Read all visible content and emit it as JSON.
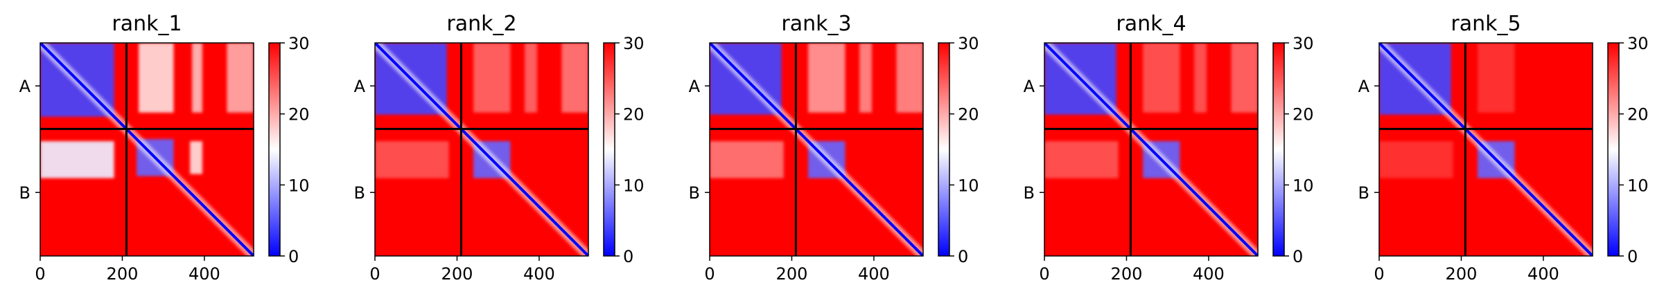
{
  "chart_data": [
    {
      "type": "heatmap",
      "title": "rank_1",
      "xlim": [
        0,
        520
      ],
      "x_ticks": [
        "0",
        "200",
        "400"
      ],
      "y_ticks": [
        "A",
        "B"
      ],
      "chains": [
        {
          "name": "A",
          "start": 0,
          "end": 210
        },
        {
          "name": "B",
          "start": 210,
          "end": 520
        }
      ],
      "colorbar": {
        "min": 0,
        "max": 30,
        "ticks": [
          "0",
          "10",
          "20",
          "30"
        ],
        "colormap": [
          "#0000ff",
          "#ffffff",
          "#ff0000"
        ]
      },
      "low_blocks": [
        {
          "x": [
            0,
            180
          ],
          "y": [
            0,
            180
          ],
          "value": 4
        },
        {
          "x": [
            235,
            325
          ],
          "y": [
            235,
            325
          ],
          "value": 6
        },
        {
          "x": [
            240,
            325
          ],
          "y": [
            0,
            170
          ],
          "value": 17
        },
        {
          "x": [
            0,
            180
          ],
          "y": [
            240,
            330
          ],
          "value": 14
        },
        {
          "x": [
            370,
            395
          ],
          "y": [
            0,
            170
          ],
          "value": 19
        },
        {
          "x": [
            455,
            520
          ],
          "y": [
            0,
            170
          ],
          "value": 20
        },
        {
          "x": [
            365,
            395
          ],
          "y": [
            240,
            320
          ],
          "value": 17
        }
      ]
    },
    {
      "type": "heatmap",
      "title": "rank_2",
      "xlim": [
        0,
        520
      ],
      "x_ticks": [
        "0",
        "200",
        "400"
      ],
      "y_ticks": [
        "A",
        "B"
      ],
      "chains": [
        {
          "name": "A",
          "start": 0,
          "end": 210
        },
        {
          "name": "B",
          "start": 210,
          "end": 520
        }
      ],
      "colorbar": {
        "min": 0,
        "max": 30,
        "ticks": [
          "0",
          "10",
          "20",
          "30"
        ],
        "colormap": [
          "#0000ff",
          "#ffffff",
          "#ff0000"
        ]
      },
      "low_blocks": [
        {
          "x": [
            0,
            175
          ],
          "y": [
            0,
            175
          ],
          "value": 4
        },
        {
          "x": [
            240,
            330
          ],
          "y": [
            240,
            330
          ],
          "value": 6
        },
        {
          "x": [
            240,
            330
          ],
          "y": [
            0,
            170
          ],
          "value": 24
        },
        {
          "x": [
            365,
            395
          ],
          "y": [
            0,
            170
          ],
          "value": 24
        },
        {
          "x": [
            455,
            520
          ],
          "y": [
            0,
            170
          ],
          "value": 23
        },
        {
          "x": [
            0,
            180
          ],
          "y": [
            240,
            330
          ],
          "value": 25
        }
      ]
    },
    {
      "type": "heatmap",
      "title": "rank_3",
      "xlim": [
        0,
        520
      ],
      "x_ticks": [
        "0",
        "200",
        "400"
      ],
      "y_ticks": [
        "A",
        "B"
      ],
      "chains": [
        {
          "name": "A",
          "start": 0,
          "end": 210
        },
        {
          "name": "B",
          "start": 210,
          "end": 520
        }
      ],
      "colorbar": {
        "min": 0,
        "max": 30,
        "ticks": [
          "0",
          "10",
          "20",
          "30"
        ],
        "colormap": [
          "#0000ff",
          "#ffffff",
          "#ff0000"
        ]
      },
      "low_blocks": [
        {
          "x": [
            0,
            175
          ],
          "y": [
            0,
            175
          ],
          "value": 4
        },
        {
          "x": [
            240,
            330
          ],
          "y": [
            240,
            330
          ],
          "value": 6
        },
        {
          "x": [
            240,
            330
          ],
          "y": [
            0,
            170
          ],
          "value": 21
        },
        {
          "x": [
            365,
            395
          ],
          "y": [
            0,
            170
          ],
          "value": 22
        },
        {
          "x": [
            455,
            520
          ],
          "y": [
            0,
            170
          ],
          "value": 22
        },
        {
          "x": [
            0,
            180
          ],
          "y": [
            240,
            330
          ],
          "value": 23
        }
      ]
    },
    {
      "type": "heatmap",
      "title": "rank_4",
      "xlim": [
        0,
        520
      ],
      "x_ticks": [
        "0",
        "200",
        "400"
      ],
      "y_ticks": [
        "A",
        "B"
      ],
      "chains": [
        {
          "name": "A",
          "start": 0,
          "end": 210
        },
        {
          "name": "B",
          "start": 210,
          "end": 520
        }
      ],
      "colorbar": {
        "min": 0,
        "max": 30,
        "ticks": [
          "0",
          "10",
          "20",
          "30"
        ],
        "colormap": [
          "#0000ff",
          "#ffffff",
          "#ff0000"
        ]
      },
      "low_blocks": [
        {
          "x": [
            0,
            175
          ],
          "y": [
            0,
            175
          ],
          "value": 4
        },
        {
          "x": [
            240,
            330
          ],
          "y": [
            240,
            330
          ],
          "value": 6
        },
        {
          "x": [
            240,
            330
          ],
          "y": [
            0,
            170
          ],
          "value": 25
        },
        {
          "x": [
            365,
            395
          ],
          "y": [
            0,
            170
          ],
          "value": 25
        },
        {
          "x": [
            455,
            520
          ],
          "y": [
            0,
            170
          ],
          "value": 24
        },
        {
          "x": [
            0,
            180
          ],
          "y": [
            240,
            330
          ],
          "value": 25
        }
      ]
    },
    {
      "type": "heatmap",
      "title": "rank_5",
      "xlim": [
        0,
        520
      ],
      "x_ticks": [
        "0",
        "200",
        "400"
      ],
      "y_ticks": [
        "A",
        "B"
      ],
      "chains": [
        {
          "name": "A",
          "start": 0,
          "end": 210
        },
        {
          "name": "B",
          "start": 210,
          "end": 520
        }
      ],
      "colorbar": {
        "min": 0,
        "max": 30,
        "ticks": [
          "0",
          "10",
          "20",
          "30"
        ],
        "colormap": [
          "#0000ff",
          "#ffffff",
          "#ff0000"
        ]
      },
      "low_blocks": [
        {
          "x": [
            0,
            175
          ],
          "y": [
            0,
            175
          ],
          "value": 4
        },
        {
          "x": [
            240,
            330
          ],
          "y": [
            240,
            330
          ],
          "value": 6
        },
        {
          "x": [
            240,
            330
          ],
          "y": [
            0,
            170
          ],
          "value": 27
        },
        {
          "x": [
            0,
            180
          ],
          "y": [
            240,
            330
          ],
          "value": 27
        }
      ]
    }
  ]
}
